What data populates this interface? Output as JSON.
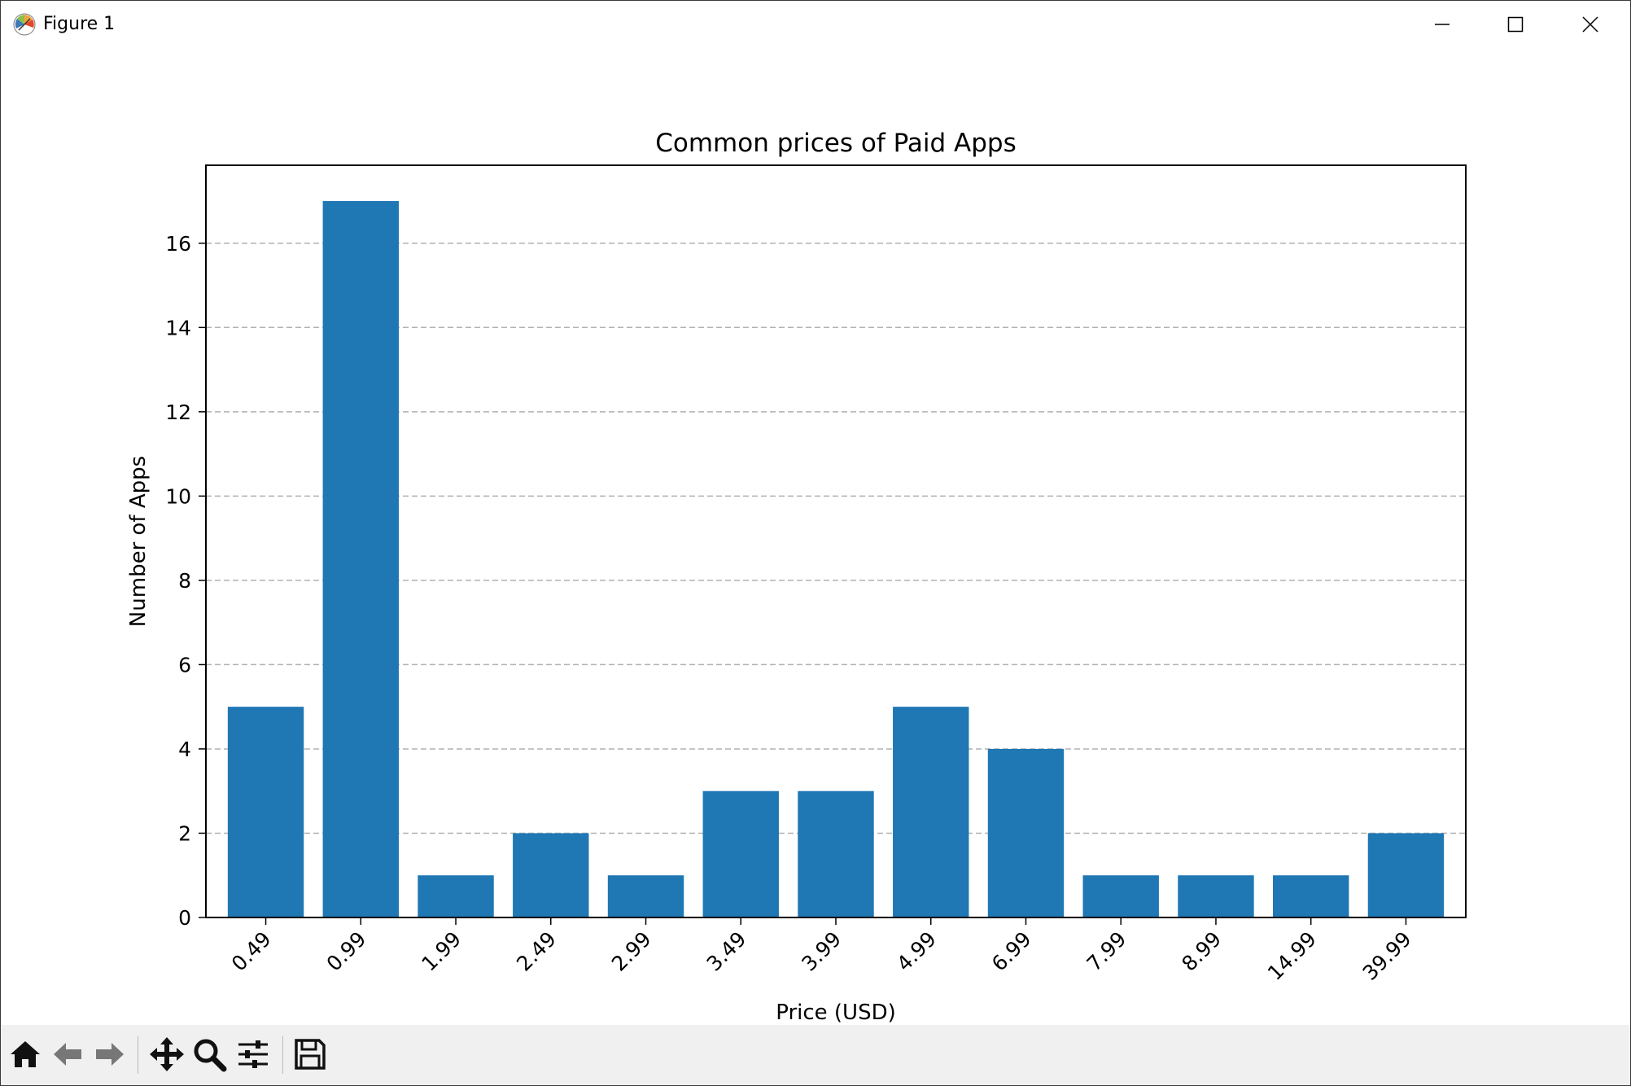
{
  "window": {
    "title": "Figure 1"
  },
  "toolbar": {
    "buttons": [
      {
        "name": "home",
        "icon": "home-icon"
      },
      {
        "name": "back",
        "icon": "arrow-left-icon"
      },
      {
        "name": "forward",
        "icon": "arrow-right-icon"
      },
      {
        "name": "pan",
        "icon": "move-icon"
      },
      {
        "name": "zoom",
        "icon": "magnifier-icon"
      },
      {
        "name": "configure",
        "icon": "sliders-icon"
      },
      {
        "name": "save",
        "icon": "floppy-disk-icon"
      }
    ]
  },
  "chart_data": {
    "type": "bar",
    "title": "Common prices of Paid Apps",
    "xlabel": "Price (USD)",
    "ylabel": "Number of Apps",
    "categories": [
      "0.49",
      "0.99",
      "1.99",
      "2.49",
      "2.99",
      "3.49",
      "3.99",
      "4.99",
      "6.99",
      "7.99",
      "8.99",
      "14.99",
      "39.99"
    ],
    "values": [
      5,
      17,
      1,
      2,
      1,
      3,
      3,
      5,
      4,
      1,
      1,
      1,
      2
    ],
    "ylim": [
      0,
      17.85
    ],
    "yticks": [
      0,
      2,
      4,
      6,
      8,
      10,
      12,
      14,
      16
    ],
    "grid": {
      "axis": "y",
      "style": "dashed"
    },
    "bar_color": "#1f77b4",
    "xtick_rotation": -45
  }
}
